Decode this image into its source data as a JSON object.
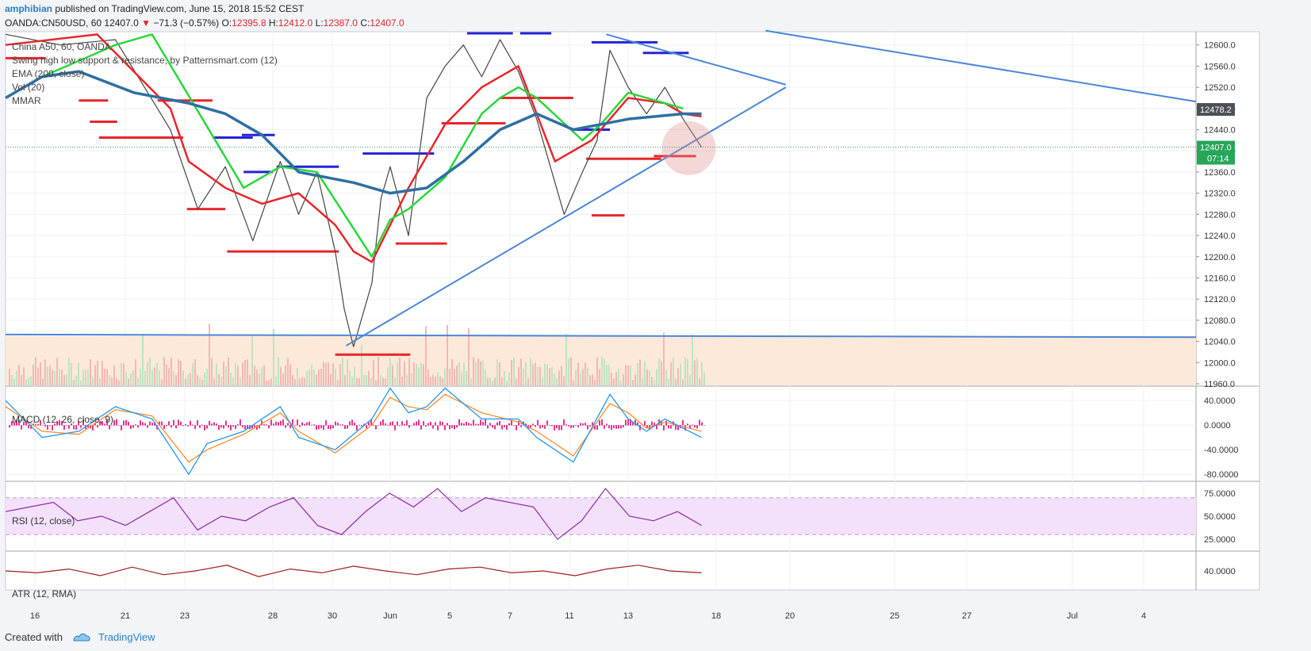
{
  "header": {
    "author": "amphibian",
    "published_text": "published on TradingView.com, June 15, 2018 15:52 CEST",
    "symbol_text": "OANDA:CN50USD, 60",
    "last_price": "12407.0",
    "change_text": "−71.3 (−0.57%)",
    "open_label": "O:",
    "open": "12395.8",
    "high_label": "H:",
    "high": "12412.0",
    "low_label": "L:",
    "low": "12387.0",
    "close_label": "C:",
    "close": "12407.0"
  },
  "legend": [
    "China A50, 60, OANDA",
    "Swing high low support & resistance, by Patternsmart.com (12)",
    "EMA (200, close)",
    "Vol (20)",
    "MMAR"
  ],
  "panes": {
    "macd_title": "MACD (12, 26, close, 9)",
    "rsi_title": "RSI (12, close)",
    "atr_title": "ATR (12, RMA)"
  },
  "footer": {
    "created_with": "Created with",
    "brand": "TradingView"
  },
  "colors": {
    "ema200": "#2e6fa3",
    "mmar_red": "#e8262b",
    "mmar_green": "#28d83a",
    "trendline": "#4a86d8",
    "support_red": "#e8262b",
    "resistance_blue": "#2323d8",
    "volume_zone": "#fde9d9",
    "rsi_band": "#f3e0fb",
    "macd_line": "#2196f3",
    "signal_line": "#ff8c2b",
    "histogram": "#e6338f",
    "rsi_line": "#8b2aa8",
    "atr_line": "#a01d1d"
  },
  "chart_data": [
    {
      "type": "line",
      "title": "China A50, 60, OANDA",
      "x_ticks": [
        "16",
        "21",
        "23",
        "28",
        "30",
        "Jun",
        "5",
        "7",
        "11",
        "13",
        "18",
        "20",
        "25",
        "27",
        "Jul",
        "4"
      ],
      "y_ticks": [
        12600,
        12560,
        12520,
        12480,
        12440,
        12400,
        12360,
        12320,
        12280,
        12240,
        12200,
        12160,
        12120,
        12080,
        12040,
        12000,
        11960
      ],
      "ylim": [
        11957,
        12625
      ],
      "price_labels": {
        "ema_value": "12478.2",
        "last": "12407.0",
        "countdown": "07:14"
      },
      "price_series": [
        {
          "name": "price",
          "x": [
            0,
            3,
            6,
            9,
            10.5,
            12,
            13.5,
            15,
            16,
            17,
            18,
            18.5,
            19,
            20,
            20.5,
            21,
            22,
            23,
            24,
            25,
            26,
            27,
            28,
            29,
            30.5,
            31.5,
            32.3,
            33,
            34,
            35,
            36,
            37,
            38
          ],
          "y": [
            12620,
            12600,
            12610,
            12440,
            12290,
            12370,
            12230,
            12380,
            12280,
            12360,
            12210,
            12100,
            12030,
            12150,
            12310,
            12370,
            12240,
            12500,
            12560,
            12600,
            12540,
            12610,
            12550,
            12460,
            12280,
            12360,
            12420,
            12590,
            12520,
            12470,
            12520,
            12460,
            12407
          ]
        },
        {
          "name": "EMA (200, close)",
          "x": [
            0,
            2,
            4,
            7,
            10,
            12,
            14,
            16,
            19,
            21,
            23,
            25,
            27,
            29,
            31,
            34,
            37,
            38
          ],
          "y": [
            12500,
            12540,
            12550,
            12510,
            12490,
            12470,
            12430,
            12360,
            12340,
            12320,
            12330,
            12380,
            12440,
            12470,
            12440,
            12460,
            12470,
            12470
          ]
        },
        {
          "name": "MMAR red",
          "x": [
            0,
            5,
            9,
            10,
            12,
            14,
            16,
            18,
            19,
            20,
            21,
            22,
            24,
            26,
            28,
            30,
            32,
            34,
            36,
            37,
            38
          ],
          "y": [
            12600,
            12620,
            12480,
            12380,
            12330,
            12300,
            12320,
            12260,
            12210,
            12190,
            12260,
            12330,
            12450,
            12520,
            12560,
            12380,
            12420,
            12500,
            12490,
            12470,
            12465
          ]
        },
        {
          "name": "MMAR green",
          "x": [
            2,
            6,
            8,
            13,
            15,
            17,
            20,
            21,
            22,
            24,
            26,
            27,
            28,
            29,
            31.5,
            32.5,
            34,
            36,
            37
          ],
          "y": [
            12540,
            12600,
            12620,
            12330,
            12370,
            12360,
            12200,
            12270,
            12290,
            12350,
            12470,
            12500,
            12520,
            12500,
            12420,
            12450,
            12510,
            12490,
            12480
          ]
        }
      ],
      "trendlines": [
        {
          "from": [
            18.6,
            12032
          ],
          "to": [
            42.6,
            12520
          ]
        },
        {
          "from": [
            32.8,
            12620
          ],
          "to": [
            42.6,
            12525
          ]
        },
        {
          "from": [
            41.5,
            12627
          ],
          "to": [
            65,
            12493
          ]
        },
        {
          "from": [
            0,
            12053
          ],
          "to": [
            65,
            12048
          ]
        }
      ]
    },
    {
      "type": "line",
      "title": "MACD (12, 26, close, 9)",
      "y_ticks": [
        40,
        0,
        -40,
        -80
      ],
      "ylim": [
        -90,
        62
      ],
      "macd": {
        "x": [
          0,
          2,
          4,
          6,
          8,
          10,
          11,
          13,
          15,
          16,
          18,
          20,
          21,
          22,
          23,
          24,
          26,
          28,
          29,
          31,
          33,
          34,
          35,
          36,
          38
        ],
        "y": [
          40,
          -20,
          -10,
          30,
          10,
          -80,
          -30,
          -10,
          30,
          -20,
          -40,
          10,
          60,
          20,
          30,
          60,
          10,
          10,
          -20,
          -60,
          50,
          10,
          -10,
          10,
          -20
        ]
      },
      "signal": {
        "x": [
          0,
          2,
          4,
          6,
          8,
          10,
          11,
          13,
          15,
          16,
          18,
          20,
          21,
          22,
          23,
          24,
          26,
          28,
          29,
          31,
          33,
          34,
          35,
          36,
          38
        ],
        "y": [
          30,
          -10,
          -15,
          25,
          15,
          -60,
          -40,
          -15,
          20,
          -10,
          -45,
          0,
          45,
          30,
          25,
          50,
          20,
          5,
          -10,
          -50,
          35,
          20,
          -5,
          5,
          -10
        ]
      }
    },
    {
      "type": "line",
      "title": "RSI (12, close)",
      "y_ticks": [
        75,
        50,
        25
      ],
      "ylim": [
        13,
        87
      ],
      "band": [
        30,
        70
      ],
      "values": [
        55,
        60,
        65,
        45,
        50,
        40,
        55,
        70,
        35,
        50,
        45,
        60,
        70,
        40,
        30,
        55,
        75,
        60,
        80,
        55,
        70,
        65,
        60,
        25,
        45,
        80,
        50,
        45,
        55,
        40
      ]
    },
    {
      "type": "line",
      "title": "ATR (12, RMA)",
      "y_ticks": [
        40
      ],
      "ylim": [
        20,
        60
      ],
      "values": [
        40,
        38,
        42,
        35,
        44,
        36,
        40,
        46,
        34,
        42,
        38,
        45,
        40,
        36,
        42,
        44,
        38,
        40,
        35,
        42,
        46,
        40,
        38
      ]
    }
  ]
}
